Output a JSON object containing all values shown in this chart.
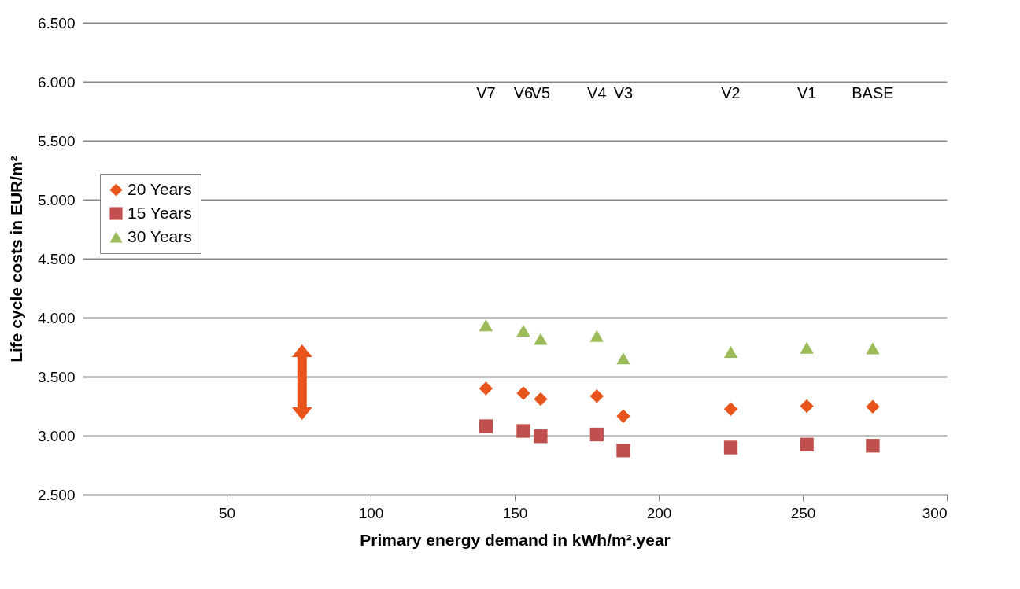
{
  "chart_data": {
    "type": "scatter",
    "xlabel": "Primary energy demand in kWh/m².year",
    "ylabel": "Life cycle costs in EUR/m²",
    "series": [
      {
        "name": "20 Years",
        "color": "#e8541c",
        "marker": "diamond",
        "x": [
          140,
          153,
          159,
          178.5,
          187.7,
          225,
          251.4,
          274.3
        ],
        "values": [
          3400,
          3360,
          3310,
          3335,
          3165,
          3225,
          3250,
          3245
        ]
      },
      {
        "name": "15 Years",
        "color": "#c0504d",
        "marker": "square",
        "x": [
          140,
          153,
          159,
          178.5,
          187.7,
          225,
          251.4,
          274.3
        ],
        "values": [
          3080,
          3040,
          2995,
          3010,
          2875,
          2900,
          2925,
          2915
        ]
      },
      {
        "name": "30 Years",
        "color": "#9bbb59",
        "marker": "triangle",
        "x": [
          140,
          153,
          159,
          178.5,
          187.7,
          225,
          251.4,
          274.3
        ],
        "values": [
          3935,
          3890,
          3820,
          3845,
          3655,
          3710,
          3745,
          3740
        ]
      }
    ],
    "annotations": [
      "V7",
      "V6",
      "V5",
      "V4",
      "V3",
      "V2",
      "V1",
      "BASE"
    ],
    "xlim": [
      0,
      300
    ],
    "xticks": [
      50,
      100,
      150,
      200,
      250,
      300
    ],
    "ylim": [
      2500,
      6500
    ],
    "yticks": [
      {
        "value": 2500,
        "label": "2.500"
      },
      {
        "value": 3000,
        "label": "3.000"
      },
      {
        "value": 3500,
        "label": "3.500"
      },
      {
        "value": 4000,
        "label": "4.000"
      },
      {
        "value": 4500,
        "label": "4.500"
      },
      {
        "value": 5000,
        "label": "5.000"
      },
      {
        "value": 5500,
        "label": "5.500"
      },
      {
        "value": 6000,
        "label": "6.000"
      },
      {
        "value": 6500,
        "label": "6.500"
      }
    ],
    "grid": "y",
    "legend": "left"
  }
}
